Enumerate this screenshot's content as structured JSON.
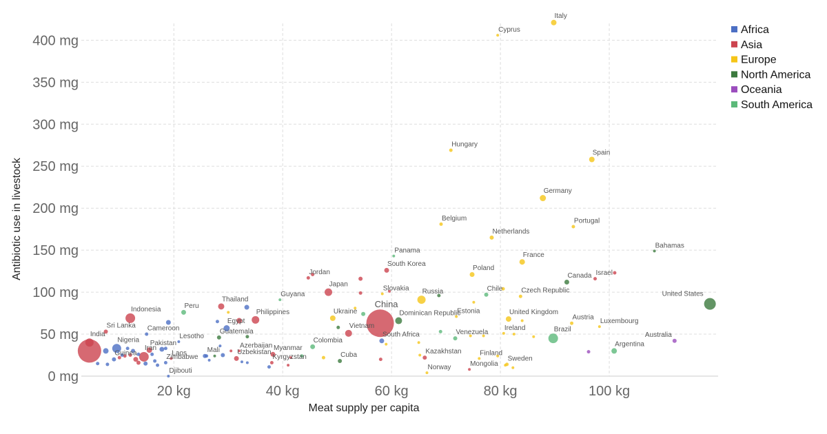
{
  "chart_data": {
    "type": "scatter",
    "xlabel": "Meat supply per capita",
    "ylabel": "Antibiotic use in livestock",
    "xlim": [
      3,
      120
    ],
    "ylim": [
      0,
      420
    ],
    "x_ticks": [
      20,
      40,
      60,
      80,
      100
    ],
    "x_tick_labels": [
      "20 kg",
      "40 kg",
      "60 kg",
      "80 kg",
      "100 kg"
    ],
    "y_ticks": [
      0,
      50,
      100,
      150,
      200,
      250,
      300,
      350,
      400
    ],
    "y_tick_labels": [
      "0 mg",
      "50 mg",
      "100 mg",
      "150 mg",
      "200 mg",
      "250 mg",
      "300 mg",
      "350 mg",
      "400 mg"
    ],
    "grid": true,
    "legend_position": "top-right",
    "series": [
      {
        "name": "Africa",
        "color": "#4C6FC4"
      },
      {
        "name": "Asia",
        "color": "#CC444F"
      },
      {
        "name": "Europe",
        "color": "#F5C518"
      },
      {
        "name": "North America",
        "color": "#3C7A3E"
      },
      {
        "name": "Oceania",
        "color": "#9B4DBD"
      },
      {
        "name": "South America",
        "color": "#5CB97A"
      }
    ],
    "points": [
      {
        "label": "Italy",
        "x": 89.8,
        "y": 421,
        "r": 4,
        "s": 2
      },
      {
        "label": "Cyprus",
        "x": 79.5,
        "y": 406,
        "r": 2,
        "s": 2
      },
      {
        "label": "Hungary",
        "x": 70.9,
        "y": 269,
        "r": 2.5,
        "s": 2
      },
      {
        "label": "Spain",
        "x": 96.8,
        "y": 258,
        "r": 4,
        "s": 2
      },
      {
        "label": "Germany",
        "x": 87.8,
        "y": 212,
        "r": 4.5,
        "s": 2
      },
      {
        "label": "Belgium",
        "x": 69.1,
        "y": 181,
        "r": 2.5,
        "s": 2
      },
      {
        "label": "Portugal",
        "x": 93.4,
        "y": 178,
        "r": 2.5,
        "s": 2
      },
      {
        "label": "Netherlands",
        "x": 78.4,
        "y": 165,
        "r": 3,
        "s": 2
      },
      {
        "label": "Bahamas",
        "x": 108.3,
        "y": 149,
        "r": 2,
        "s": 3
      },
      {
        "label": "Panama",
        "x": 60.4,
        "y": 143,
        "r": 2,
        "s": 5
      },
      {
        "label": "France",
        "x": 84.0,
        "y": 136,
        "r": 4,
        "s": 2
      },
      {
        "label": "South Korea",
        "x": 59.1,
        "y": 126,
        "r": 3.5,
        "s": 1
      },
      {
        "label": "Poland",
        "x": 74.8,
        "y": 121,
        "r": 3.5,
        "s": 2
      },
      {
        "label": "Jordan",
        "x": 44.7,
        "y": 117,
        "r": 2.5,
        "s": 1
      },
      {
        "label": "Israel",
        "x": 97.4,
        "y": 116,
        "r": 2.5,
        "s": 1
      },
      {
        "label": "Canada",
        "x": 92.2,
        "y": 112,
        "r": 3.5,
        "s": 3
      },
      {
        "label": "Japan",
        "x": 48.4,
        "y": 100,
        "r": 5.5,
        "s": 1
      },
      {
        "label": "Slovakia",
        "x": 58.3,
        "y": 98,
        "r": 2,
        "s": 2
      },
      {
        "label": "Russia",
        "x": 65.5,
        "y": 91,
        "r": 6,
        "s": 2
      },
      {
        "label": "Chile",
        "x": 77.4,
        "y": 97,
        "r": 3,
        "s": 5
      },
      {
        "label": "Czech Republic",
        "x": 83.7,
        "y": 95,
        "r": 2.5,
        "s": 2
      },
      {
        "label": "Guyana",
        "x": 39.5,
        "y": 91,
        "r": 2,
        "s": 5
      },
      {
        "label": "United States",
        "x": 118.5,
        "y": 86,
        "r": 8.5,
        "s": 3
      },
      {
        "label": "Thailand",
        "x": 28.7,
        "y": 83,
        "r": 4.5,
        "s": 1
      },
      {
        "label": "China",
        "x": 57.9,
        "y": 63,
        "r": 20,
        "s": 1,
        "big": true
      },
      {
        "label": "Peru",
        "x": 21.8,
        "y": 76,
        "r": 3.5,
        "s": 5
      },
      {
        "label": "Estonia",
        "x": 71.9,
        "y": 71,
        "r": 2,
        "s": 2
      },
      {
        "label": "Ukraine",
        "x": 49.2,
        "y": 69,
        "r": 4,
        "s": 2
      },
      {
        "label": "Indonesia",
        "x": 12.0,
        "y": 69,
        "r": 7,
        "s": 1
      },
      {
        "label": "United Kingdom",
        "x": 81.5,
        "y": 68,
        "r": 4,
        "s": 2
      },
      {
        "label": "Philippines",
        "x": 35.0,
        "y": 67,
        "r": 5.5,
        "s": 1
      },
      {
        "label": "Dominican Republic",
        "x": 61.3,
        "y": 66,
        "r": 5,
        "s": 3
      },
      {
        "label": "Austria",
        "x": 93.1,
        "y": 63,
        "r": 2.5,
        "s": 2
      },
      {
        "label": "Luxembourg",
        "x": 98.2,
        "y": 59,
        "r": 2,
        "s": 2
      },
      {
        "label": "Egypt",
        "x": 29.7,
        "y": 57,
        "r": 4.5,
        "s": 0
      },
      {
        "label": "Vietnam",
        "x": 52.1,
        "y": 51,
        "r": 5,
        "s": 1
      },
      {
        "label": "Cameroon",
        "x": 15.0,
        "y": 50,
        "r": 2.5,
        "s": 0
      },
      {
        "label": "Sri Lanka",
        "x": 7.5,
        "y": 53,
        "r": 3,
        "s": 1
      },
      {
        "label": "Ireland",
        "x": 80.6,
        "y": 51,
        "r": 2,
        "s": 2
      },
      {
        "label": "Guatemala",
        "x": 28.3,
        "y": 46,
        "r": 3,
        "s": 3
      },
      {
        "label": "Lesotho",
        "x": 20.9,
        "y": 41,
        "r": 2,
        "s": 0
      },
      {
        "label": "Brazil",
        "x": 89.7,
        "y": 45,
        "r": 7,
        "s": 5
      },
      {
        "label": "Venezuela",
        "x": 71.7,
        "y": 45,
        "r": 3,
        "s": 5
      },
      {
        "label": "South Africa",
        "x": 58.2,
        "y": 42,
        "r": 3.5,
        "s": 0
      },
      {
        "label": "Australia",
        "x": 112.0,
        "y": 42,
        "r": 3,
        "s": 4
      },
      {
        "label": "India",
        "x": 4.5,
        "y": 40,
        "r": 6,
        "s": 1
      },
      {
        "label": "Colombia",
        "x": 45.5,
        "y": 35,
        "r": 3.5,
        "s": 5
      },
      {
        "label": "Nigeria",
        "x": 9.5,
        "y": 33,
        "r": 6.5,
        "s": 0
      },
      {
        "label": "Azerbaijan",
        "x": 32.0,
        "y": 30,
        "r": 2,
        "s": 1
      },
      {
        "label": "Pakistan",
        "x": 15.5,
        "y": 31,
        "r": 4,
        "s": 1
      },
      {
        "label": "Argentina",
        "x": 100.9,
        "y": 30,
        "r": 4,
        "s": 5
      },
      {
        "label": "",
        "x": 96.2,
        "y": 29,
        "r": 2.5,
        "s": 4
      },
      {
        "label": "Myanmar",
        "x": 38.2,
        "y": 26,
        "r": 3.5,
        "s": 1
      },
      {
        "label": "Mali",
        "x": 26.0,
        "y": 24,
        "r": 2.5,
        "s": 0
      },
      {
        "label": "Uzbekistan",
        "x": 31.5,
        "y": 21,
        "r": 3.5,
        "s": 1
      },
      {
        "label": "Laos",
        "x": 19.5,
        "y": 21,
        "r": 2,
        "s": 1
      },
      {
        "label": "Kazakhstan",
        "x": 66.1,
        "y": 22,
        "r": 3,
        "s": 1
      },
      {
        "label": "Finland",
        "x": 76.1,
        "y": 21,
        "r": 2,
        "s": 2
      },
      {
        "label": "Cuba",
        "x": 50.5,
        "y": 18,
        "r": 3,
        "s": 3
      },
      {
        "label": "Iran",
        "x": 14.5,
        "y": 23,
        "r": 7,
        "s": 1
      },
      {
        "label": "Guinea",
        "x": 9.0,
        "y": 20,
        "r": 3,
        "s": 0
      },
      {
        "label": "Zimbabwe",
        "x": 18.5,
        "y": 16,
        "r": 2.5,
        "s": 0
      },
      {
        "label": "Kyrgyzstan",
        "x": 38.0,
        "y": 16,
        "r": 2.5,
        "s": 1
      },
      {
        "label": "Sweden",
        "x": 81.2,
        "y": 14,
        "r": 2.5,
        "s": 2
      },
      {
        "label": "Mongolia",
        "x": 74.3,
        "y": 8,
        "r": 2,
        "s": 1
      },
      {
        "label": "Norway",
        "x": 66.5,
        "y": 4,
        "r": 2,
        "s": 2
      },
      {
        "label": "Djibouti",
        "x": 19.0,
        "y": 0,
        "r": 2,
        "s": 0
      },
      {
        "label": "",
        "x": 4.5,
        "y": 30,
        "r": 17,
        "s": 1
      },
      {
        "label": "",
        "x": 7.5,
        "y": 30,
        "r": 4,
        "s": 0
      },
      {
        "label": "",
        "x": 6.0,
        "y": 15,
        "r": 2.5,
        "s": 0
      },
      {
        "label": "",
        "x": 7.8,
        "y": 14,
        "r": 2.5,
        "s": 0
      },
      {
        "label": "",
        "x": 10.0,
        "y": 22,
        "r": 2.5,
        "s": 1
      },
      {
        "label": "",
        "x": 11.0,
        "y": 24,
        "r": 2.5,
        "s": 1
      },
      {
        "label": "",
        "x": 11.5,
        "y": 33,
        "r": 2.5,
        "s": 0
      },
      {
        "label": "",
        "x": 12.5,
        "y": 30,
        "r": 3,
        "s": 0
      },
      {
        "label": "",
        "x": 13.0,
        "y": 20,
        "r": 3.5,
        "s": 1
      },
      {
        "label": "",
        "x": 13.5,
        "y": 16,
        "r": 3,
        "s": 1
      },
      {
        "label": "",
        "x": 14.8,
        "y": 15,
        "r": 3,
        "s": 0
      },
      {
        "label": "",
        "x": 16.0,
        "y": 26,
        "r": 2.5,
        "s": 0
      },
      {
        "label": "",
        "x": 16.5,
        "y": 18,
        "r": 2.5,
        "s": 0
      },
      {
        "label": "",
        "x": 17.0,
        "y": 13,
        "r": 2.5,
        "s": 0
      },
      {
        "label": "",
        "x": 17.8,
        "y": 32,
        "r": 3.5,
        "s": 0
      },
      {
        "label": "",
        "x": 18.5,
        "y": 33,
        "r": 2.5,
        "s": 0
      },
      {
        "label": "",
        "x": 19.0,
        "y": 64,
        "r": 3.5,
        "s": 0
      },
      {
        "label": "",
        "x": 13.5,
        "y": 26,
        "r": 2.5,
        "s": 0
      },
      {
        "label": "",
        "x": 10.5,
        "y": 25,
        "r": 2.5,
        "s": 0
      },
      {
        "label": "",
        "x": 12.0,
        "y": 25,
        "r": 2.5,
        "s": 1
      },
      {
        "label": "",
        "x": 25.7,
        "y": 24,
        "r": 3,
        "s": 0
      },
      {
        "label": "",
        "x": 26.5,
        "y": 19,
        "r": 2,
        "s": 0
      },
      {
        "label": "",
        "x": 27.5,
        "y": 24,
        "r": 2,
        "s": 3
      },
      {
        "label": "",
        "x": 28.5,
        "y": 36,
        "r": 2,
        "s": 0
      },
      {
        "label": "",
        "x": 29.0,
        "y": 25,
        "r": 3,
        "s": 0
      },
      {
        "label": "",
        "x": 28.0,
        "y": 65,
        "r": 2.5,
        "s": 0
      },
      {
        "label": "",
        "x": 30.0,
        "y": 76,
        "r": 2,
        "s": 2
      },
      {
        "label": "",
        "x": 30.5,
        "y": 30,
        "r": 2,
        "s": 1
      },
      {
        "label": "",
        "x": 32.5,
        "y": 17,
        "r": 2,
        "s": 0
      },
      {
        "label": "",
        "x": 33.5,
        "y": 16,
        "r": 2,
        "s": 0
      },
      {
        "label": "",
        "x": 33.4,
        "y": 82,
        "r": 3.5,
        "s": 0
      },
      {
        "label": "",
        "x": 33.5,
        "y": 47,
        "r": 2.5,
        "s": 3
      },
      {
        "label": "",
        "x": 32.0,
        "y": 66,
        "r": 4,
        "s": 1
      },
      {
        "label": "",
        "x": 37.5,
        "y": 11,
        "r": 2.5,
        "s": 0
      },
      {
        "label": "",
        "x": 41.5,
        "y": 22,
        "r": 2,
        "s": 1
      },
      {
        "label": "",
        "x": 43.5,
        "y": 24,
        "r": 2.5,
        "s": 5
      },
      {
        "label": "",
        "x": 45.5,
        "y": 121,
        "r": 2.5,
        "s": 1
      },
      {
        "label": "",
        "x": 47.5,
        "y": 22,
        "r": 2.5,
        "s": 2
      },
      {
        "label": "",
        "x": 50.2,
        "y": 58,
        "r": 2.5,
        "s": 3
      },
      {
        "label": "",
        "x": 53.3,
        "y": 81,
        "r": 2,
        "s": 2
      },
      {
        "label": "",
        "x": 54.3,
        "y": 116,
        "r": 3,
        "s": 1
      },
      {
        "label": "",
        "x": 54.3,
        "y": 99,
        "r": 2.5,
        "s": 1
      },
      {
        "label": "",
        "x": 54.8,
        "y": 74,
        "r": 3,
        "s": 5
      },
      {
        "label": "",
        "x": 58.0,
        "y": 20,
        "r": 2.5,
        "s": 1
      },
      {
        "label": "",
        "x": 59.0,
        "y": 38,
        "r": 2,
        "s": 2
      },
      {
        "label": "",
        "x": 59.6,
        "y": 101,
        "r": 2,
        "s": 1
      },
      {
        "label": "",
        "x": 65.0,
        "y": 40,
        "r": 2,
        "s": 2
      },
      {
        "label": "",
        "x": 65.2,
        "y": 25,
        "r": 2,
        "s": 2
      },
      {
        "label": "",
        "x": 68.7,
        "y": 96,
        "r": 2.5,
        "s": 3
      },
      {
        "label": "",
        "x": 69.0,
        "y": 53,
        "r": 2.5,
        "s": 5
      },
      {
        "label": "",
        "x": 74.5,
        "y": 48,
        "r": 2,
        "s": 2
      },
      {
        "label": "",
        "x": 75.1,
        "y": 88,
        "r": 2,
        "s": 2
      },
      {
        "label": "",
        "x": 76.9,
        "y": 48,
        "r": 2,
        "s": 2
      },
      {
        "label": "",
        "x": 79.5,
        "y": 24,
        "r": 2,
        "s": 2
      },
      {
        "label": "",
        "x": 80.5,
        "y": 104,
        "r": 2.5,
        "s": 2
      },
      {
        "label": "",
        "x": 80.9,
        "y": 13,
        "r": 2,
        "s": 2
      },
      {
        "label": "",
        "x": 82.3,
        "y": 10,
        "r": 2,
        "s": 2
      },
      {
        "label": "",
        "x": 82.5,
        "y": 50,
        "r": 2,
        "s": 2
      },
      {
        "label": "",
        "x": 84.0,
        "y": 66,
        "r": 2,
        "s": 2
      },
      {
        "label": "",
        "x": 86.1,
        "y": 47,
        "r": 2,
        "s": 2
      },
      {
        "label": "",
        "x": 101.0,
        "y": 123,
        "r": 2.5,
        "s": 1
      },
      {
        "label": "",
        "x": 41.0,
        "y": 13,
        "r": 2,
        "s": 1
      }
    ]
  }
}
